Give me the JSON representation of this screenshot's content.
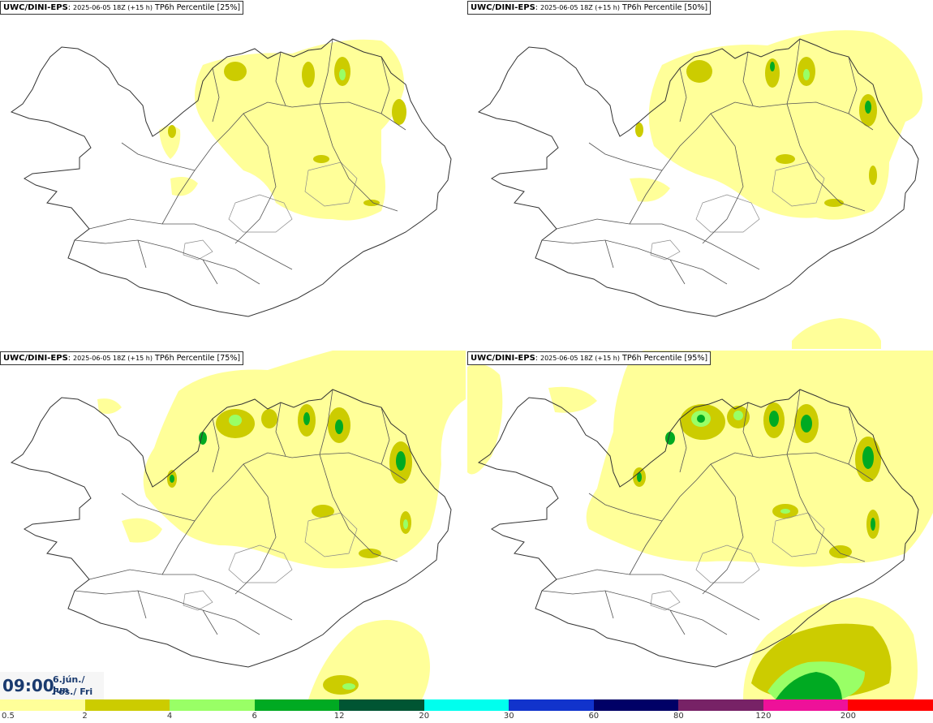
{
  "panels": [
    {
      "model": "UWC/DINI-EPS",
      "run": "2025-06-05 18Z (+15 h)",
      "field": "TP6h Percentile [25%]",
      "percentile": 25
    },
    {
      "model": "UWC/DINI-EPS",
      "run": "2025-06-05 18Z (+15 h)",
      "field": "TP6h Percentile [50%]",
      "percentile": 50
    },
    {
      "model": "UWC/DINI-EPS",
      "run": "2025-06-05 18Z (+15 h)",
      "field": "TP6h Percentile [75%]",
      "percentile": 75
    },
    {
      "model": "UWC/DINI-EPS",
      "run": "2025-06-05 18Z (+15 h)",
      "field": "TP6h Percentile [95%]",
      "percentile": 95
    }
  ],
  "valid_time": {
    "time": "09:00",
    "date_line1": "6.jún./ Jun",
    "date_line2": "Fös./ Fri"
  },
  "legend": {
    "thresholds": [
      "0.5",
      "2",
      "4",
      "6",
      "12",
      "20",
      "30",
      "60",
      "80",
      "120",
      "200"
    ],
    "colors": [
      "#ffff99",
      "#cccc00",
      "#99ff66",
      "#00aa22",
      "#005533",
      "#00ffee",
      "#1133cc",
      "#000066",
      "#772266",
      "#ee1199",
      "#ff0000"
    ]
  },
  "colors": {
    "light": "#ffff99",
    "mid": "#cccc00",
    "green": "#99ff66",
    "darkgreen": "#00aa22",
    "deepgreen": "#005533"
  }
}
